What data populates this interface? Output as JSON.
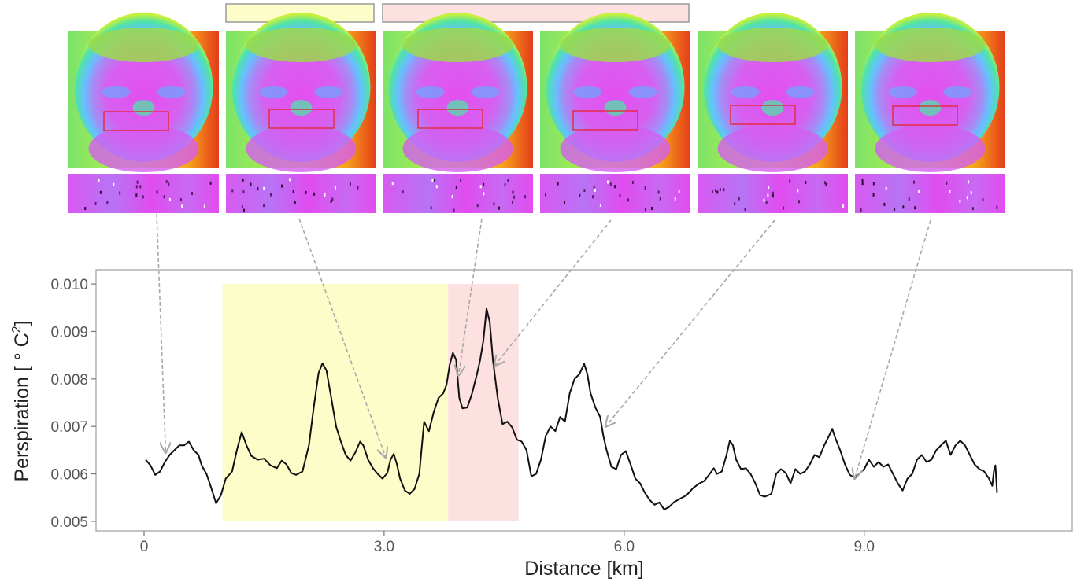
{
  "chart_data": {
    "type": "line",
    "xlabel": "Distance [km]",
    "ylabel_main": "Perspiration [ ° C",
    "ylabel_sup": "2",
    "ylabel_close": "]",
    "xlim": [
      -0.6,
      11.6
    ],
    "ylim": [
      0.0048,
      0.0103
    ],
    "x_ticks": [
      {
        "value": 0,
        "label": "0"
      },
      {
        "value": 3,
        "label": "3.0"
      },
      {
        "value": 6,
        "label": "6.0"
      },
      {
        "value": 9,
        "label": "9.0"
      }
    ],
    "y_ticks": [
      {
        "value": 0.005,
        "label": "0.005"
      },
      {
        "value": 0.006,
        "label": "0.006"
      },
      {
        "value": 0.007,
        "label": "0.007"
      },
      {
        "value": 0.008,
        "label": "0.008"
      },
      {
        "value": 0.009,
        "label": "0.009"
      },
      {
        "value": 0.01,
        "label": "0.010"
      }
    ],
    "grid": false,
    "bands": [
      {
        "x0": 0.98,
        "x1": 3.8,
        "y0": 0.005,
        "y1": 0.01,
        "color": "#fdfdc9"
      },
      {
        "x0": 3.8,
        "x1": 4.68,
        "y0": 0.005,
        "y1": 0.01,
        "color": "#fde0e0"
      }
    ],
    "series": [
      {
        "color": "#111111",
        "points": [
          [
            0.02,
            0.0063
          ],
          [
            0.08,
            0.00618
          ],
          [
            0.14,
            0.00598
          ],
          [
            0.2,
            0.00605
          ],
          [
            0.26,
            0.00625
          ],
          [
            0.32,
            0.0064
          ],
          [
            0.38,
            0.0065
          ],
          [
            0.44,
            0.0066
          ],
          [
            0.5,
            0.0066
          ],
          [
            0.56,
            0.00668
          ],
          [
            0.62,
            0.0065
          ],
          [
            0.68,
            0.0064
          ],
          [
            0.72,
            0.00618
          ],
          [
            0.78,
            0.006
          ],
          [
            0.84,
            0.0057
          ],
          [
            0.9,
            0.00538
          ],
          [
            0.96,
            0.00555
          ],
          [
            1.02,
            0.0059
          ],
          [
            1.1,
            0.00605
          ],
          [
            1.16,
            0.0065
          ],
          [
            1.22,
            0.00688
          ],
          [
            1.28,
            0.0066
          ],
          [
            1.34,
            0.00638
          ],
          [
            1.42,
            0.0063
          ],
          [
            1.5,
            0.00632
          ],
          [
            1.58,
            0.00618
          ],
          [
            1.66,
            0.00612
          ],
          [
            1.72,
            0.00628
          ],
          [
            1.78,
            0.0062
          ],
          [
            1.84,
            0.00602
          ],
          [
            1.9,
            0.00598
          ],
          [
            1.98,
            0.00605
          ],
          [
            2.06,
            0.0066
          ],
          [
            2.12,
            0.0074
          ],
          [
            2.18,
            0.00812
          ],
          [
            2.23,
            0.00833
          ],
          [
            2.28,
            0.00818
          ],
          [
            2.34,
            0.0076
          ],
          [
            2.4,
            0.007
          ],
          [
            2.46,
            0.00668
          ],
          [
            2.52,
            0.0064
          ],
          [
            2.58,
            0.00628
          ],
          [
            2.64,
            0.00645
          ],
          [
            2.7,
            0.00668
          ],
          [
            2.74,
            0.0066
          ],
          [
            2.8,
            0.0063
          ],
          [
            2.86,
            0.00612
          ],
          [
            2.92,
            0.006
          ],
          [
            2.98,
            0.0059
          ],
          [
            3.04,
            0.00602
          ],
          [
            3.08,
            0.0063
          ],
          [
            3.12,
            0.00642
          ],
          [
            3.16,
            0.0062
          ],
          [
            3.2,
            0.0059
          ],
          [
            3.26,
            0.00565
          ],
          [
            3.32,
            0.00558
          ],
          [
            3.38,
            0.00568
          ],
          [
            3.44,
            0.006
          ],
          [
            3.5,
            0.0071
          ],
          [
            3.56,
            0.0069
          ],
          [
            3.62,
            0.0073
          ],
          [
            3.68,
            0.0076
          ],
          [
            3.74,
            0.0077
          ],
          [
            3.78,
            0.00788
          ],
          [
            3.82,
            0.0083
          ],
          [
            3.86,
            0.00855
          ],
          [
            3.9,
            0.0084
          ],
          [
            3.94,
            0.0076
          ],
          [
            3.98,
            0.00738
          ],
          [
            4.04,
            0.0074
          ],
          [
            4.1,
            0.0077
          ],
          [
            4.16,
            0.0081
          ],
          [
            4.2,
            0.0084
          ],
          [
            4.24,
            0.0088
          ],
          [
            4.28,
            0.00948
          ],
          [
            4.32,
            0.0092
          ],
          [
            4.36,
            0.0084
          ],
          [
            4.42,
            0.0076
          ],
          [
            4.48,
            0.00705
          ],
          [
            4.54,
            0.0071
          ],
          [
            4.6,
            0.00698
          ],
          [
            4.66,
            0.00672
          ],
          [
            4.72,
            0.00668
          ],
          [
            4.78,
            0.0065
          ],
          [
            4.84,
            0.00595
          ],
          [
            4.9,
            0.006
          ],
          [
            4.96,
            0.0063
          ],
          [
            5.02,
            0.0068
          ],
          [
            5.08,
            0.007
          ],
          [
            5.14,
            0.0069
          ],
          [
            5.2,
            0.0072
          ],
          [
            5.26,
            0.0071
          ],
          [
            5.32,
            0.0077
          ],
          [
            5.38,
            0.008
          ],
          [
            5.44,
            0.0081
          ],
          [
            5.5,
            0.00832
          ],
          [
            5.54,
            0.0081
          ],
          [
            5.58,
            0.0077
          ],
          [
            5.64,
            0.0074
          ],
          [
            5.7,
            0.0072
          ],
          [
            5.74,
            0.0068
          ],
          [
            5.78,
            0.0065
          ],
          [
            5.84,
            0.00615
          ],
          [
            5.9,
            0.0061
          ],
          [
            5.96,
            0.0064
          ],
          [
            6.02,
            0.00648
          ],
          [
            6.08,
            0.0062
          ],
          [
            6.14,
            0.0059
          ],
          [
            6.2,
            0.0058
          ],
          [
            6.26,
            0.0056
          ],
          [
            6.32,
            0.00545
          ],
          [
            6.38,
            0.00535
          ],
          [
            6.44,
            0.0054
          ],
          [
            6.5,
            0.00525
          ],
          [
            6.56,
            0.0053
          ],
          [
            6.62,
            0.0054
          ],
          [
            6.7,
            0.00548
          ],
          [
            6.78,
            0.00555
          ],
          [
            6.86,
            0.0057
          ],
          [
            6.94,
            0.0058
          ],
          [
            7.0,
            0.00585
          ],
          [
            7.06,
            0.00598
          ],
          [
            7.12,
            0.00612
          ],
          [
            7.16,
            0.006
          ],
          [
            7.22,
            0.00605
          ],
          [
            7.28,
            0.0064
          ],
          [
            7.32,
            0.0067
          ],
          [
            7.36,
            0.0066
          ],
          [
            7.4,
            0.0063
          ],
          [
            7.46,
            0.0061
          ],
          [
            7.52,
            0.00612
          ],
          [
            7.58,
            0.006
          ],
          [
            7.64,
            0.0058
          ],
          [
            7.7,
            0.00555
          ],
          [
            7.76,
            0.00552
          ],
          [
            7.84,
            0.00558
          ],
          [
            7.9,
            0.006
          ],
          [
            7.96,
            0.0061
          ],
          [
            8.02,
            0.00602
          ],
          [
            8.08,
            0.0058
          ],
          [
            8.14,
            0.0061
          ],
          [
            8.2,
            0.006
          ],
          [
            8.26,
            0.00605
          ],
          [
            8.32,
            0.0062
          ],
          [
            8.38,
            0.0064
          ],
          [
            8.44,
            0.00635
          ],
          [
            8.5,
            0.0066
          ],
          [
            8.56,
            0.0068
          ],
          [
            8.6,
            0.00695
          ],
          [
            8.64,
            0.00675
          ],
          [
            8.7,
            0.0065
          ],
          [
            8.76,
            0.0062
          ],
          [
            8.82,
            0.00598
          ],
          [
            8.88,
            0.00592
          ],
          [
            8.94,
            0.006
          ],
          [
            9.0,
            0.0061
          ],
          [
            9.06,
            0.0063
          ],
          [
            9.12,
            0.00615
          ],
          [
            9.18,
            0.00625
          ],
          [
            9.24,
            0.00615
          ],
          [
            9.3,
            0.0062
          ],
          [
            9.36,
            0.006
          ],
          [
            9.42,
            0.0058
          ],
          [
            9.48,
            0.00565
          ],
          [
            9.54,
            0.0059
          ],
          [
            9.6,
            0.006
          ],
          [
            9.66,
            0.0063
          ],
          [
            9.72,
            0.0064
          ],
          [
            9.78,
            0.00625
          ],
          [
            9.84,
            0.0063
          ],
          [
            9.9,
            0.0065
          ],
          [
            9.96,
            0.0066
          ],
          [
            10.02,
            0.0067
          ],
          [
            10.08,
            0.0064
          ],
          [
            10.14,
            0.0066
          ],
          [
            10.2,
            0.0067
          ],
          [
            10.26,
            0.0066
          ],
          [
            10.32,
            0.0064
          ],
          [
            10.38,
            0.0062
          ],
          [
            10.44,
            0.0061
          ],
          [
            10.5,
            0.00605
          ],
          [
            10.56,
            0.0059
          ],
          [
            10.6,
            0.00575
          ],
          [
            10.62,
            0.00605
          ],
          [
            10.64,
            0.00618
          ],
          [
            10.66,
            0.0056
          ]
        ]
      }
    ]
  },
  "panels": [
    {
      "caption": ""
    },
    {
      "caption": ""
    },
    {
      "caption": ""
    },
    {
      "caption": ""
    },
    {
      "caption": ""
    },
    {
      "caption": ""
    }
  ],
  "arrows": [
    {
      "from_panel": 0,
      "to_x": 0.27,
      "to_y": 0.00645
    },
    {
      "from_panel": 1,
      "to_x": 3.02,
      "to_y": 0.00635
    },
    {
      "from_panel": 2,
      "to_x": 3.93,
      "to_y": 0.00808
    },
    {
      "from_panel": 3,
      "to_x": 4.38,
      "to_y": 0.00828
    },
    {
      "from_panel": 4,
      "to_x": 5.77,
      "to_y": 0.007
    },
    {
      "from_panel": 5,
      "to_x": 8.88,
      "to_y": 0.0059
    }
  ],
  "colors": {
    "yellow_band": "#fdfdc9",
    "pink_band": "#fde0e0",
    "legend_border": "#999999",
    "arrow": "#a8a8a8",
    "roi_box": "#e8232c"
  }
}
